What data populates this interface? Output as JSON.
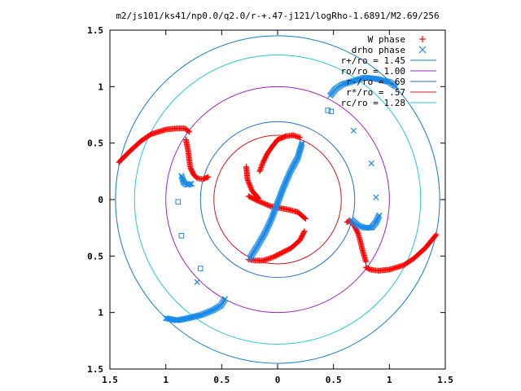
{
  "chart_data": {
    "type": "scatter",
    "title": "m2/js101/ks41/np0.0/q2.0/r-+.47-j121/logRho-1.6891/M2.69/256",
    "xlabel": "",
    "ylabel": "",
    "xlim": [
      -1.5,
      1.5
    ],
    "ylim": [
      -1.5,
      1.5
    ],
    "x_ticks": [
      "1.5",
      "1",
      "0.5",
      "0",
      "0.5",
      "1",
      "1.5"
    ],
    "y_ticks": [
      "1.5",
      "1",
      "0.5",
      "0",
      "0.5",
      "1",
      "1.5"
    ],
    "grid": false,
    "legend_position": "top-right",
    "circles": [
      {
        "label": "r+/ro = 1.45",
        "r": 1.45,
        "color": "#0d7cc9"
      },
      {
        "label": "ro/ro = 1.00",
        "r": 1.0,
        "color": "#a020c8"
      },
      {
        "label": "r-/ro = .69",
        "r": 0.69,
        "color": "#1f6fd0"
      },
      {
        "label": "r*/ro = .57",
        "r": 0.57,
        "color": "#d81818"
      },
      {
        "label": "rc/ro = 1.28",
        "r": 1.28,
        "color": "#20c8d8"
      }
    ],
    "series": [
      {
        "name": "W phase",
        "marker": "plus",
        "color": "#ff0000",
        "segments": [
          [
            [
              -0.16,
              0.25
            ],
            [
              -0.13,
              0.33
            ],
            [
              -0.09,
              0.41
            ],
            [
              -0.04,
              0.48
            ],
            [
              0.0,
              0.53
            ],
            [
              0.07,
              0.56
            ],
            [
              0.14,
              0.57
            ],
            [
              0.2,
              0.55
            ]
          ],
          [
            [
              -0.26,
              -0.53
            ],
            [
              -0.2,
              -0.54
            ],
            [
              -0.13,
              -0.54
            ],
            [
              -0.04,
              -0.51
            ],
            [
              0.04,
              -0.47
            ],
            [
              0.12,
              -0.43
            ],
            [
              0.2,
              -0.36
            ],
            [
              0.24,
              -0.28
            ]
          ],
          [
            [
              -0.26,
              0.03
            ],
            [
              -0.18,
              -0.01
            ],
            [
              -0.06,
              -0.06
            ],
            [
              0.1,
              -0.09
            ],
            [
              0.18,
              -0.11
            ],
            [
              0.25,
              -0.17
            ]
          ],
          [
            [
              -0.28,
              0.29
            ],
            [
              -0.27,
              0.18
            ],
            [
              -0.23,
              0.08
            ],
            [
              -0.17,
              0.01
            ]
          ],
          [
            [
              -1.42,
              0.33
            ],
            [
              -1.32,
              0.43
            ],
            [
              -1.22,
              0.52
            ],
            [
              -1.13,
              0.58
            ],
            [
              -1.0,
              0.62
            ],
            [
              -0.9,
              0.63
            ],
            [
              -0.83,
              0.63
            ],
            [
              -0.79,
              0.6
            ]
          ],
          [
            [
              -0.82,
              0.53
            ],
            [
              -0.8,
              0.43
            ],
            [
              -0.79,
              0.35
            ],
            [
              -0.78,
              0.28
            ],
            [
              -0.75,
              0.22
            ],
            [
              -0.72,
              0.19
            ],
            [
              -0.67,
              0.18
            ],
            [
              -0.62,
              0.2
            ]
          ],
          [
            [
              1.42,
              -0.31
            ],
            [
              1.32,
              -0.43
            ],
            [
              1.22,
              -0.52
            ],
            [
              1.13,
              -0.58
            ],
            [
              1.0,
              -0.62
            ],
            [
              0.9,
              -0.63
            ],
            [
              0.83,
              -0.62
            ],
            [
              0.79,
              -0.6
            ]
          ],
          [
            [
              0.79,
              -0.55
            ],
            [
              0.76,
              -0.45
            ],
            [
              0.74,
              -0.37
            ],
            [
              0.72,
              -0.3
            ],
            [
              0.69,
              -0.24
            ],
            [
              0.66,
              -0.2
            ],
            [
              0.64,
              -0.19
            ],
            [
              0.62,
              -0.2
            ]
          ]
        ]
      },
      {
        "name": "drho phase",
        "marker": "x",
        "color": "#1a8ae8",
        "segments": [
          [
            [
              -0.25,
              -0.52
            ],
            [
              -0.18,
              -0.41
            ],
            [
              -0.11,
              -0.29
            ],
            [
              -0.05,
              -0.16
            ],
            [
              0.0,
              -0.03
            ],
            [
              0.05,
              0.1
            ],
            [
              0.11,
              0.24
            ],
            [
              0.18,
              0.37
            ],
            [
              0.22,
              0.5
            ]
          ],
          [
            [
              0.47,
              0.92
            ],
            [
              0.52,
              0.98
            ],
            [
              0.58,
              1.02
            ],
            [
              0.68,
              1.05
            ],
            [
              0.78,
              1.08
            ],
            [
              0.88,
              1.07
            ],
            [
              1.0,
              1.04
            ],
            [
              1.06,
              1.0
            ]
          ],
          [
            [
              -1.0,
              -1.05
            ],
            [
              -0.9,
              -1.07
            ],
            [
              -0.8,
              -1.05
            ],
            [
              -0.68,
              -1.02
            ],
            [
              -0.58,
              -0.98
            ],
            [
              -0.51,
              -0.94
            ],
            [
              -0.47,
              -0.88
            ]
          ],
          [
            [
              -0.86,
              0.21
            ],
            [
              -0.84,
              0.15
            ],
            [
              -0.81,
              0.13
            ],
            [
              -0.77,
              0.14
            ]
          ],
          [
            [
              0.66,
              -0.18
            ],
            [
              0.72,
              -0.23
            ],
            [
              0.78,
              -0.25
            ],
            [
              0.84,
              -0.25
            ],
            [
              0.88,
              -0.2
            ],
            [
              0.91,
              -0.14
            ]
          ],
          [
            [
              0.68,
              0.61
            ],
            [
              0.84,
              0.32
            ],
            [
              0.88,
              0.02
            ],
            [
              -0.72,
              -0.73
            ]
          ]
        ],
        "squares": [
          [
            0.45,
            0.79
          ],
          [
            0.48,
            0.78
          ],
          [
            -0.89,
            -0.02
          ],
          [
            -0.86,
            -0.32
          ],
          [
            -0.69,
            -0.61
          ],
          [
            -0.84,
            0.16
          ]
        ]
      }
    ]
  }
}
